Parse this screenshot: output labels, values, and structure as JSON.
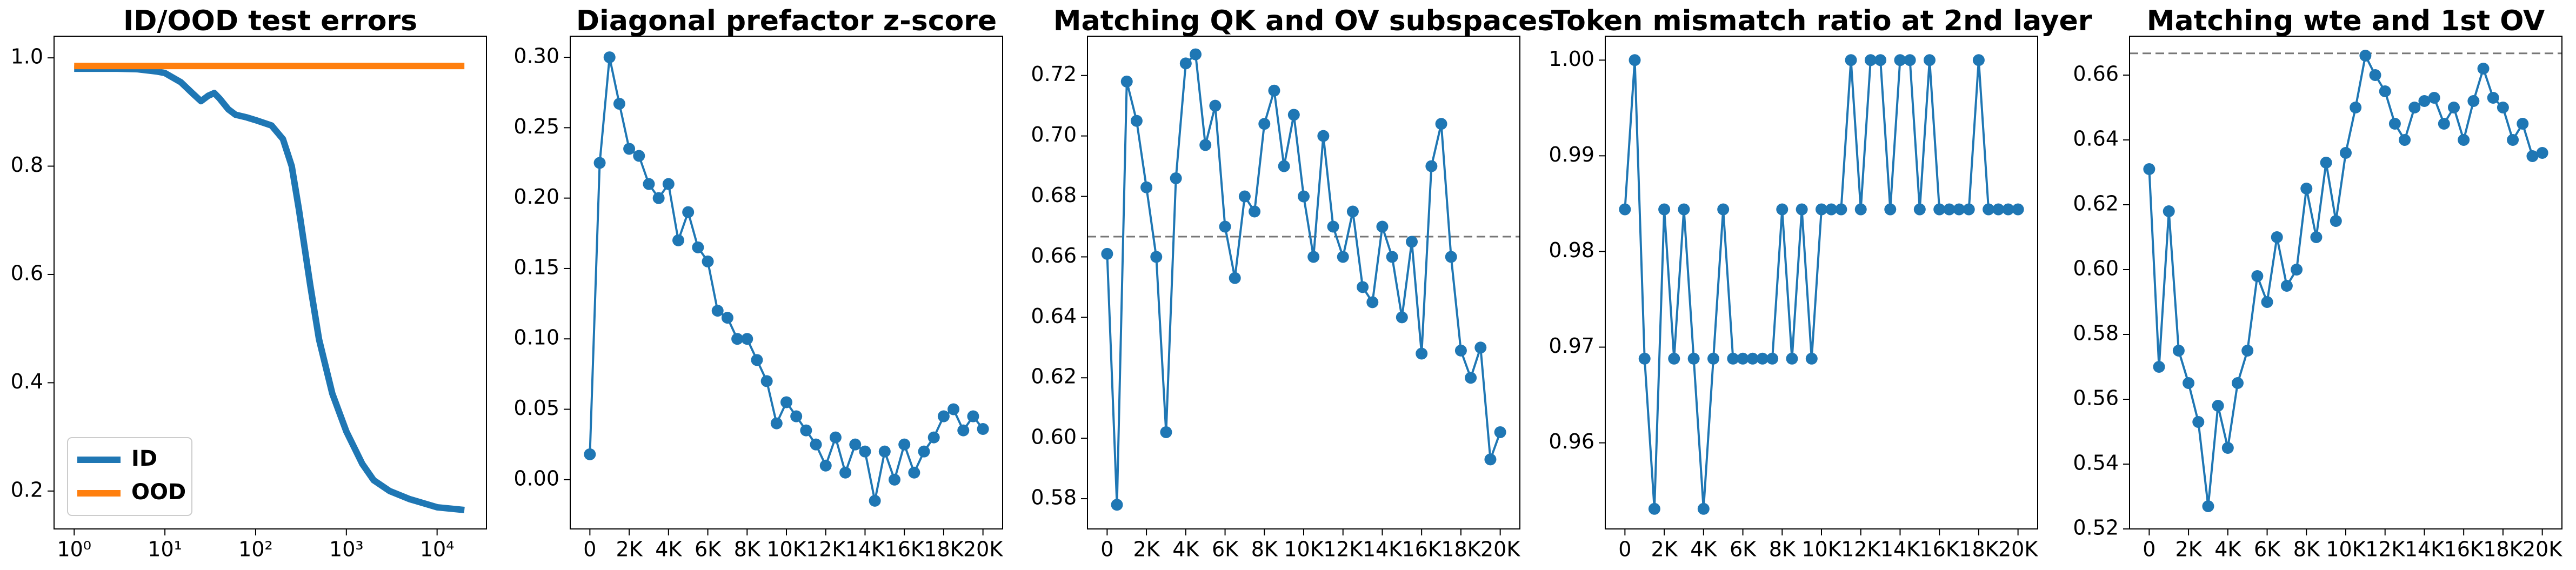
{
  "chart_data": [
    {
      "type": "line",
      "title": "ID/OOD test errors",
      "log_x": true,
      "grid": false,
      "legend": "lower left",
      "markers": false,
      "x": [
        1,
        2,
        3,
        5,
        8,
        10,
        15,
        20,
        25,
        30,
        35,
        40,
        50,
        60,
        80,
        100,
        150,
        200,
        250,
        300,
        400,
        500,
        700,
        1000,
        1500,
        2000,
        3000,
        5000,
        10000,
        20000
      ],
      "series": [
        {
          "name": "ID",
          "color": "#1f77b4",
          "values": [
            0.98,
            0.98,
            0.98,
            0.979,
            0.975,
            0.972,
            0.955,
            0.935,
            0.92,
            0.93,
            0.935,
            0.925,
            0.905,
            0.895,
            0.89,
            0.885,
            0.875,
            0.85,
            0.8,
            0.72,
            0.58,
            0.48,
            0.38,
            0.31,
            0.25,
            0.22,
            0.2,
            0.185,
            0.17,
            0.165
          ]
        },
        {
          "name": "OOD",
          "color": "#ff7f0e",
          "values": [
            0.985,
            0.985,
            0.985,
            0.985,
            0.985,
            0.985,
            0.985,
            0.985,
            0.985,
            0.985,
            0.985,
            0.985,
            0.985,
            0.985,
            0.985,
            0.985,
            0.985,
            0.985,
            0.985,
            0.985,
            0.985,
            0.985,
            0.985,
            0.985,
            0.985,
            0.985,
            0.985,
            0.985,
            0.985,
            0.985
          ]
        }
      ],
      "xlim": [
        0.6,
        35000
      ],
      "xticks": [
        {
          "value": 1,
          "label": "10⁰"
        },
        {
          "value": 10,
          "label": "10¹"
        },
        {
          "value": 100,
          "label": "10²"
        },
        {
          "value": 1000,
          "label": "10³"
        },
        {
          "value": 10000,
          "label": "10⁴"
        }
      ],
      "ylim": [
        0.13,
        1.04
      ],
      "yticks": [
        0.2,
        0.4,
        0.6,
        0.8,
        {
          "value": 1,
          "label": "1.0"
        }
      ]
    },
    {
      "type": "line",
      "title": "Diagonal prefactor z-score",
      "grid": false,
      "markers": true,
      "x": [
        0,
        500,
        1000,
        1500,
        2000,
        2500,
        3000,
        3500,
        4000,
        4500,
        5000,
        5500,
        6000,
        6500,
        7000,
        7500,
        8000,
        8500,
        9000,
        9500,
        10000,
        10500,
        11000,
        11500,
        12000,
        12500,
        13000,
        13500,
        14000,
        14500,
        15000,
        15500,
        16000,
        16500,
        17000,
        17500,
        18000,
        18500,
        19000,
        19500,
        20000
      ],
      "series": [
        {
          "color": "#1f77b4",
          "values": [
            0.018,
            0.225,
            0.3,
            0.267,
            0.235,
            0.23,
            0.21,
            0.2,
            0.21,
            0.17,
            0.19,
            0.165,
            0.155,
            0.12,
            0.115,
            0.1,
            0.1,
            0.085,
            0.07,
            0.04,
            0.055,
            0.045,
            0.035,
            0.025,
            0.01,
            0.03,
            0.005,
            0.025,
            0.02,
            -0.015,
            0.02,
            0,
            0.025,
            0.005,
            0.02,
            0.03,
            0.045,
            0.05,
            0.035,
            0.045,
            0.036
          ]
        }
      ],
      "xlim": [
        -1000,
        21000
      ],
      "xticks": [
        0,
        {
          "value": 2000,
          "label": "2K"
        },
        {
          "value": 4000,
          "label": "4K"
        },
        {
          "value": 6000,
          "label": "6K"
        },
        {
          "value": 8000,
          "label": "8K"
        },
        {
          "value": 10000,
          "label": "10K"
        },
        {
          "value": 12000,
          "label": "12K"
        },
        {
          "value": 14000,
          "label": "14K"
        },
        {
          "value": 16000,
          "label": "16K"
        },
        {
          "value": 18000,
          "label": "18K"
        },
        {
          "value": 20000,
          "label": "20K"
        }
      ],
      "ylim": [
        -0.035,
        0.315
      ],
      "yticks": [
        {
          "value": 0,
          "label": "0.00"
        },
        0.05,
        {
          "value": 0.1,
          "label": "0.10"
        },
        0.15,
        {
          "value": 0.2,
          "label": "0.20"
        },
        0.25,
        {
          "value": 0.3,
          "label": "0.30"
        }
      ]
    },
    {
      "type": "line",
      "title": "Matching QK and OV subspaces",
      "grid": false,
      "markers": true,
      "reference_line": 0.6667,
      "x": [
        0,
        500,
        1000,
        1500,
        2000,
        2500,
        3000,
        3500,
        4000,
        4500,
        5000,
        5500,
        6000,
        6500,
        7000,
        7500,
        8000,
        8500,
        9000,
        9500,
        10000,
        10500,
        11000,
        11500,
        12000,
        12500,
        13000,
        13500,
        14000,
        14500,
        15000,
        15500,
        16000,
        16500,
        17000,
        17500,
        18000,
        18500,
        19000,
        19500,
        20000
      ],
      "series": [
        {
          "color": "#1f77b4",
          "values": [
            0.661,
            0.578,
            0.718,
            0.705,
            0.683,
            0.66,
            0.602,
            0.686,
            0.724,
            0.727,
            0.697,
            0.71,
            0.67,
            0.653,
            0.68,
            0.675,
            0.704,
            0.715,
            0.69,
            0.707,
            0.68,
            0.66,
            0.7,
            0.67,
            0.66,
            0.675,
            0.65,
            0.645,
            0.67,
            0.66,
            0.64,
            0.665,
            0.628,
            0.69,
            0.704,
            0.66,
            0.629,
            0.62,
            0.63,
            0.593,
            0.602
          ]
        }
      ],
      "xlim": [
        -1000,
        21000
      ],
      "xticks": [
        0,
        {
          "value": 2000,
          "label": "2K"
        },
        {
          "value": 4000,
          "label": "4K"
        },
        {
          "value": 6000,
          "label": "6K"
        },
        {
          "value": 8000,
          "label": "8K"
        },
        {
          "value": 10000,
          "label": "10K"
        },
        {
          "value": 12000,
          "label": "12K"
        },
        {
          "value": 14000,
          "label": "14K"
        },
        {
          "value": 16000,
          "label": "16K"
        },
        {
          "value": 18000,
          "label": "18K"
        },
        {
          "value": 20000,
          "label": "20K"
        }
      ],
      "ylim": [
        0.57,
        0.733
      ],
      "yticks": [
        0.58,
        {
          "value": 0.6,
          "label": "0.60"
        },
        0.62,
        0.64,
        0.66,
        0.68,
        {
          "value": 0.7,
          "label": "0.70"
        },
        0.72
      ]
    },
    {
      "type": "line",
      "title": "Token mismatch ratio at 2nd layer",
      "grid": false,
      "markers": true,
      "x": [
        0,
        500,
        1000,
        1500,
        2000,
        2500,
        3000,
        3500,
        4000,
        4500,
        5000,
        5500,
        6000,
        6500,
        7000,
        7500,
        8000,
        8500,
        9000,
        9500,
        10000,
        10500,
        11000,
        11500,
        12000,
        12500,
        13000,
        13500,
        14000,
        14500,
        15000,
        15500,
        16000,
        16500,
        17000,
        17500,
        18000,
        18500,
        19000,
        19500,
        20000
      ],
      "series": [
        {
          "color": "#1f77b4",
          "values": [
            0.9844,
            1,
            0.9688,
            0.9531,
            0.9844,
            0.9688,
            0.9844,
            0.9688,
            0.9531,
            0.9688,
            0.9844,
            0.9688,
            0.9688,
            0.9688,
            0.9688,
            0.9688,
            0.9844,
            0.9688,
            0.9844,
            0.9688,
            0.9844,
            0.9844,
            0.9844,
            1,
            0.9844,
            1,
            1,
            0.9844,
            1,
            1,
            0.9844,
            1,
            0.9844,
            0.9844,
            0.9844,
            0.9844,
            1,
            0.9844,
            0.9844,
            0.9844,
            0.9844
          ]
        }
      ],
      "xlim": [
        -1000,
        21000
      ],
      "xticks": [
        0,
        {
          "value": 2000,
          "label": "2K"
        },
        {
          "value": 4000,
          "label": "4K"
        },
        {
          "value": 6000,
          "label": "6K"
        },
        {
          "value": 8000,
          "label": "8K"
        },
        {
          "value": 10000,
          "label": "10K"
        },
        {
          "value": 12000,
          "label": "12K"
        },
        {
          "value": 14000,
          "label": "14K"
        },
        {
          "value": 16000,
          "label": "16K"
        },
        {
          "value": 18000,
          "label": "18K"
        },
        {
          "value": 20000,
          "label": "20K"
        }
      ],
      "ylim": [
        0.951,
        1.0025
      ],
      "yticks": [
        0.96,
        0.97,
        0.98,
        0.99,
        {
          "value": 1,
          "label": "1.00"
        }
      ]
    },
    {
      "type": "line",
      "title": "Matching wte and 1st OV",
      "grid": false,
      "markers": true,
      "reference_line": 0.6667,
      "x": [
        0,
        500,
        1000,
        1500,
        2000,
        2500,
        3000,
        3500,
        4000,
        4500,
        5000,
        5500,
        6000,
        6500,
        7000,
        7500,
        8000,
        8500,
        9000,
        9500,
        10000,
        10500,
        11000,
        11500,
        12000,
        12500,
        13000,
        13500,
        14000,
        14500,
        15000,
        15500,
        16000,
        16500,
        17000,
        17500,
        18000,
        18500,
        19000,
        19500,
        20000
      ],
      "series": [
        {
          "color": "#1f77b4",
          "values": [
            0.631,
            0.57,
            0.618,
            0.575,
            0.565,
            0.553,
            0.527,
            0.558,
            0.545,
            0.565,
            0.575,
            0.598,
            0.59,
            0.61,
            0.595,
            0.6,
            0.625,
            0.61,
            0.633,
            0.615,
            0.636,
            0.65,
            0.666,
            0.66,
            0.655,
            0.645,
            0.64,
            0.65,
            0.652,
            0.653,
            0.645,
            0.65,
            0.64,
            0.652,
            0.662,
            0.653,
            0.65,
            0.64,
            0.645,
            0.635,
            0.636
          ]
        }
      ],
      "xlim": [
        -1000,
        21000
      ],
      "xticks": [
        0,
        {
          "value": 2000,
          "label": "2K"
        },
        {
          "value": 4000,
          "label": "4K"
        },
        {
          "value": 6000,
          "label": "6K"
        },
        {
          "value": 8000,
          "label": "8K"
        },
        {
          "value": 10000,
          "label": "10K"
        },
        {
          "value": 12000,
          "label": "12K"
        },
        {
          "value": 14000,
          "label": "14K"
        },
        {
          "value": 16000,
          "label": "16K"
        },
        {
          "value": 18000,
          "label": "18K"
        },
        {
          "value": 20000,
          "label": "20K"
        }
      ],
      "ylim": [
        0.52,
        0.672
      ],
      "yticks": [
        0.52,
        0.54,
        0.56,
        0.58,
        {
          "value": 0.6,
          "label": "0.60"
        },
        0.62,
        0.64,
        0.66
      ]
    }
  ]
}
